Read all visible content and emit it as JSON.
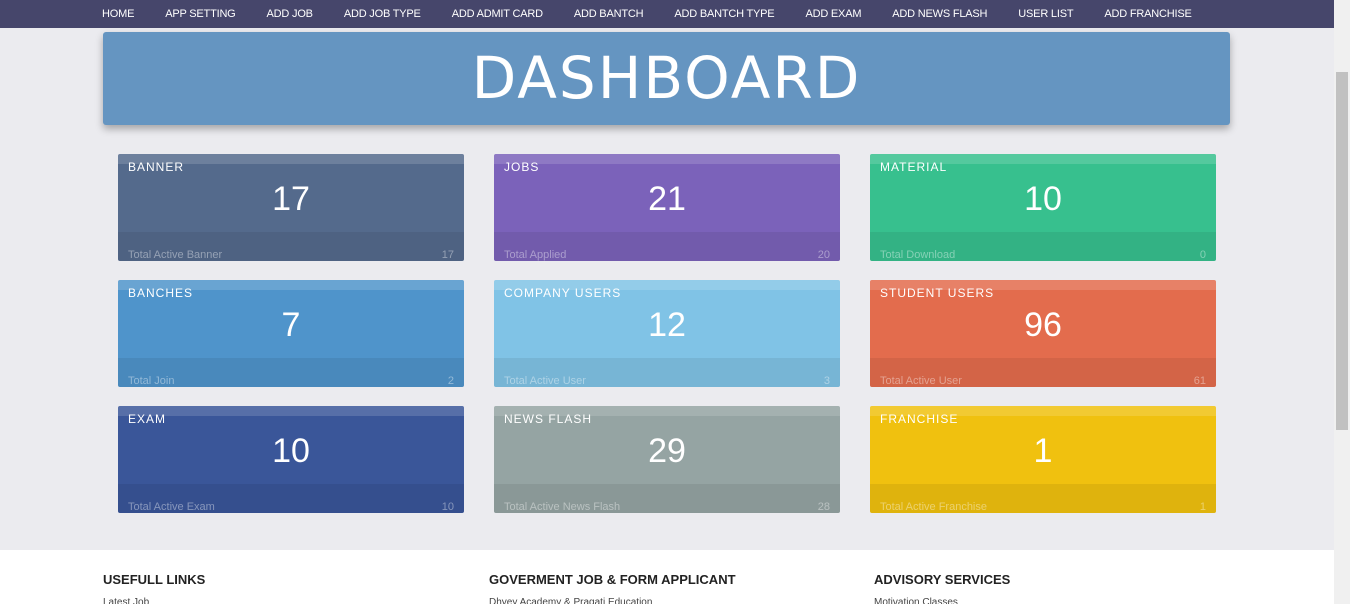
{
  "nav": [
    "HOME",
    "APP SETTING",
    "ADD JOB",
    "ADD JOB TYPE",
    "ADD ADMIT CARD",
    "ADD BANTCH",
    "ADD BANTCH TYPE",
    "ADD EXAM",
    "ADD NEWS FLASH",
    "USER LIST",
    "ADD FRANCHISE"
  ],
  "header": {
    "title": "DASHBOARD"
  },
  "cards": [
    {
      "title": "BANNER",
      "value": 17,
      "caption": "Total Active Banner",
      "count": 17,
      "color": "#546a8c"
    },
    {
      "title": "JOBS",
      "value": 21,
      "caption": "Total Applied",
      "count": 20,
      "color": "#7b62ba"
    },
    {
      "title": "MATERIAL",
      "value": 10,
      "caption": "Total Download",
      "count": 0,
      "color": "#37c08e"
    },
    {
      "title": "BANCHES",
      "value": 7,
      "caption": "Total Join",
      "count": 2,
      "color": "#4f94cb"
    },
    {
      "title": "COMPANY USERS",
      "value": 12,
      "caption": "Total Active User",
      "count": 3,
      "color": "#80c3e6"
    },
    {
      "title": "STUDENT USERS",
      "value": 96,
      "caption": "Total Active User",
      "count": 61,
      "color": "#e36c4d"
    },
    {
      "title": "EXAM",
      "value": 10,
      "caption": "Total Active Exam",
      "count": 10,
      "color": "#3a5699"
    },
    {
      "title": "NEWS FLASH",
      "value": 29,
      "caption": "Total Active News Flash",
      "count": 28,
      "color": "#95a4a3"
    },
    {
      "title": "FRANCHISE",
      "value": 1,
      "caption": "Total Active Franchise",
      "count": 1,
      "color": "#f0c10f"
    }
  ],
  "footer": [
    {
      "title": "USEFULL LINKS",
      "link": "Latest Job"
    },
    {
      "title": "GOVERMENT JOB & FORM APPLICANT",
      "link": "Dhyey Academy & Pragati Education"
    },
    {
      "title": "ADVISORY SERVICES",
      "link": "Motivation Classes"
    }
  ]
}
